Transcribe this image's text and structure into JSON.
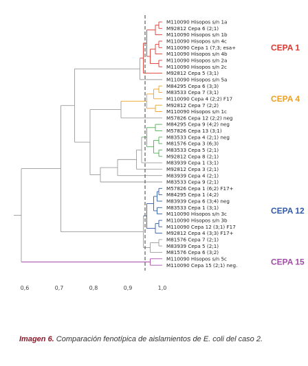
{
  "chart_data": {
    "type": "dendrogram",
    "x_ticks": [
      "0,6",
      "0,7",
      "0,8",
      "0,9",
      "1,0"
    ],
    "x_range": [
      0.58,
      1.0
    ],
    "cutoff": 0.95,
    "leaves": [
      "M110090 Hisopos s/n 1a",
      "M92812 Cepa 6 (2;1)",
      "M110090 Hisopos s/n 1b",
      "M110090 Hisopos s/n 4c",
      "M110090 Cepa 1 (7;3; esa+",
      "M110090 Hisopos s/n 4b",
      "M110090 Hisopos s/n 2a",
      "M110090 Hisopos s/n 2c",
      "M92812 Cepa 5 (3;1)",
      "M110090 Hisopos s/n 5a",
      "M84295 Cepa 6 (3;3)",
      "M83533 Cepa 7 (3;1)",
      "M110090 Cepa 4 (2;2) F17",
      "M92812 Cepa 7 (2;2)",
      "M110090 Hisopos s/n 1c",
      "M57826 Cepa 12 (2;2) neg",
      "M84295 Cepa 9 (4;2) neg",
      "M57826 Cepa 13 (3;1)",
      "M83533 Cepa 4 (2;1) neg",
      "M81576 Cepa 3 (6;3)",
      "M83533 Cepa 5 (2;1)",
      "M92812 Cepa 8 (2;1)",
      "M83939 Cepa 1 (3;1)",
      "M92812 Cepa 3 (2;1)",
      "M83939 Cepa 4 (2;1)",
      "M83533 Cepa 9 (2;1)",
      "M57826 Cepa 1 (6;2) F17+",
      "M84295 Cepa 1 (4;2)",
      "M83939 Cepa 6 (3;4) neg",
      "M83533 Cepa 1 (3;1)",
      "M110090 Hisopos s/n 3c",
      "M110090 Hisopos s/n 3b",
      "M110090 Cepa 12 (3;1) F17",
      "M92812 Cepa 4 (3;3) F17+",
      "M81576 Cepa 7 (2;1)",
      "M83939 Cepa 5 (2;1)",
      "M81576 Cepa 6 (3;2)",
      "M110090 Hisopos s/n 5c",
      "M110090 Cepa 15 (2;1) neg."
    ],
    "clusters": [
      {
        "name": "CEPA 1",
        "color": "#e0342c",
        "leaf_range": [
          0,
          8
        ]
      },
      {
        "name": "CEPA 4",
        "color": "#f0a020",
        "leaf_range": [
          10,
          14
        ]
      },
      {
        "name": "CEPA 12",
        "color": "#2e5aa8",
        "leaf_range": [
          26,
          33
        ]
      },
      {
        "name": "CEPA 15",
        "color": "#a24aa8",
        "leaf_range": [
          37,
          38
        ]
      }
    ],
    "green_group_color": "#4caf50"
  },
  "caption": {
    "title": "Imagen 6.",
    "text": " Comparación fenotípica de aislamientos de E. coli del caso 2."
  }
}
